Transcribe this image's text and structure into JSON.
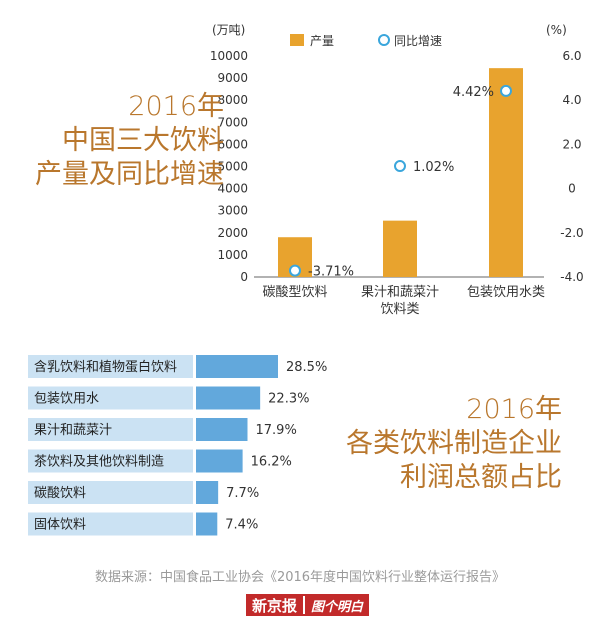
{
  "chart_data": [
    {
      "type": "bar",
      "title": "2016年 中国三大饮料 产量及同比增速",
      "title_lines": [
        "2016年",
        "中国三大饮料",
        "产量及同比增速"
      ],
      "y_unit_left": "(万吨)",
      "y_unit_right": "(%)",
      "categories": [
        "碳酸型饮料",
        "果汁和蔬菜汁 饮料类",
        "包装饮用水类"
      ],
      "category_lines": [
        [
          "碳酸型饮料"
        ],
        [
          "果汁和蔬菜汁",
          "饮料类"
        ],
        [
          "包装饮用水类"
        ]
      ],
      "series": [
        {
          "name": "产量",
          "kind": "bar",
          "axis": "left",
          "values": [
            1800,
            2550,
            9450
          ]
        },
        {
          "name": "同比增速",
          "kind": "point",
          "axis": "right",
          "values": [
            -3.71,
            1.02,
            4.42
          ],
          "labels": [
            "-3.71%",
            "1.02%",
            "4.42%"
          ]
        }
      ],
      "ylim_left": [
        0,
        10000
      ],
      "yticks_left": [
        "0",
        "1000",
        "2000",
        "3000",
        "4000",
        "5000",
        "6000",
        "7000",
        "8000",
        "9000",
        "10000"
      ],
      "ylim_right": [
        -4.0,
        6.0
      ],
      "yticks_right": [
        "-4.0",
        "-2.0",
        "0",
        "2.0",
        "4.0",
        "6.0"
      ],
      "legend": [
        "产量",
        "同比增速"
      ],
      "legend_position": "top"
    },
    {
      "type": "bar",
      "orientation": "horizontal",
      "title": "2016年 各类饮料制造企业 利润总额占比",
      "title_lines": [
        "2016年",
        "各类饮料制造企业",
        "利润总额占比"
      ],
      "categories": [
        "含乳饮料和植物蛋白饮料",
        "包装饮用水",
        "果汁和蔬菜汁",
        "茶饮料及其他饮料制造",
        "碳酸饮料",
        "固体饮料"
      ],
      "values": [
        28.5,
        22.3,
        17.9,
        16.2,
        7.7,
        7.4
      ],
      "labels": [
        "28.5%",
        "22.3%",
        "17.9%",
        "16.2%",
        "7.7%",
        "7.4%"
      ],
      "unit": "%"
    }
  ],
  "source": "数据来源：中国食品工业协会《2016年度中国饮料行业整体运行报告》",
  "logo": {
    "part1": "新京报",
    "part2": "图个明白"
  },
  "colors": {
    "bar": "#e8a32e",
    "point_stroke": "#3aa6dc",
    "hbar": "#62a8dc",
    "label_bg": "#cbe2f3",
    "title": "#b9772d"
  }
}
